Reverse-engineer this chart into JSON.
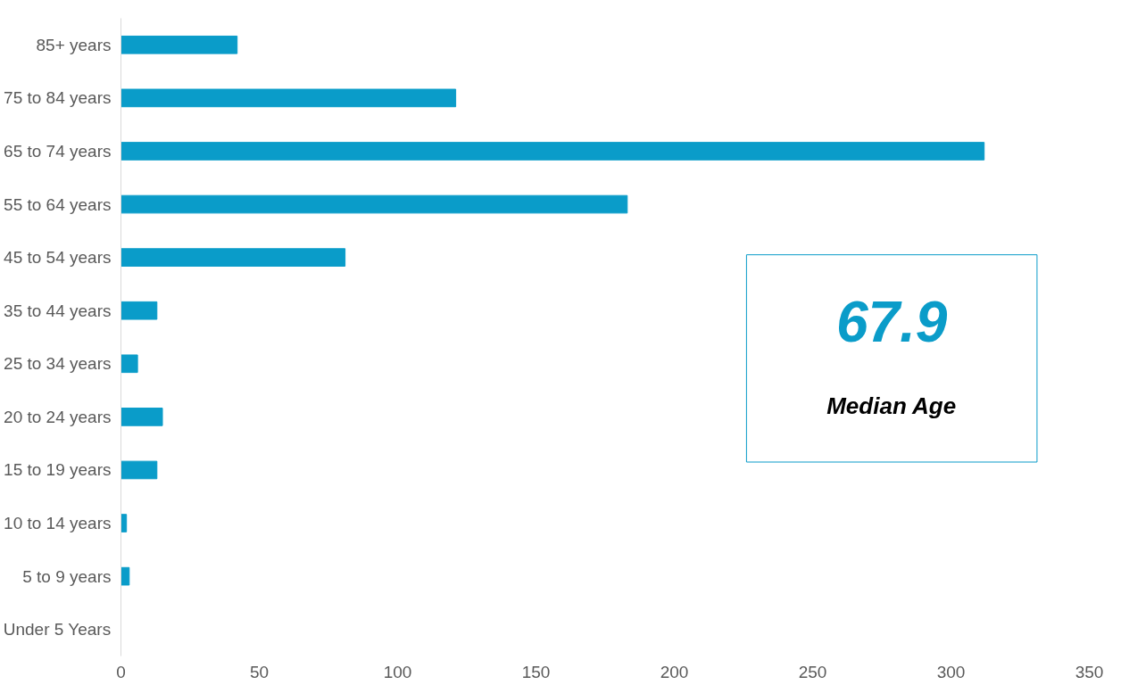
{
  "chart_data": {
    "type": "bar",
    "orientation": "horizontal",
    "categories": [
      "85+ years",
      "75 to 84 years",
      "65 to 74 years",
      "55 to 64 years",
      "45 to 54 years",
      "35 to 44 years",
      "25 to 34 years",
      "20 to 24 years",
      "15 to 19 years",
      "10 to 14 years",
      "5 to 9 years",
      "Under 5 Years"
    ],
    "values": [
      42,
      121,
      312,
      183,
      81,
      13,
      6,
      15,
      13,
      2,
      3,
      0
    ],
    "color": "#0a9cc9",
    "xlim": [
      0,
      350
    ],
    "xticks": [
      0,
      50,
      100,
      150,
      200,
      250,
      300,
      350
    ],
    "grid": false,
    "annotations": [
      "67.9",
      "Median Age"
    ]
  }
}
